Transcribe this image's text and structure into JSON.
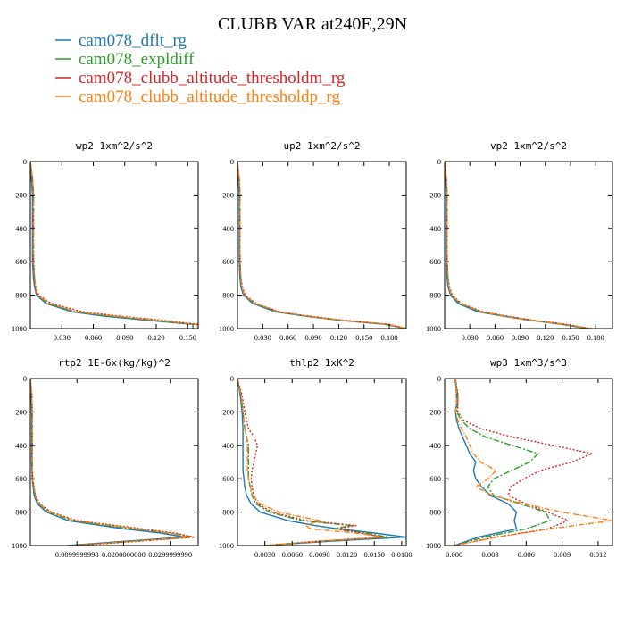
{
  "title": "CLUBB VAR at240E,29N",
  "legend": [
    {
      "name": "cam078_dflt_rg",
      "color": "#1f77b4",
      "dash": ""
    },
    {
      "name": "cam078_expldiff",
      "color": "#2ca02c",
      "dash": "7,2,2,2"
    },
    {
      "name": "cam078_clubb_altitude_thresholdm_rg",
      "color": "#d62728",
      "dash": "2,2"
    },
    {
      "name": "cam078_clubb_altitude_thresholdp_rg",
      "color": "#ff7f0e",
      "dash": "6,2,1,2"
    }
  ],
  "chart_data": [
    {
      "type": "line",
      "title": "wp2  1xm^2/s^2",
      "ylim": [
        1000,
        0
      ],
      "yticks": [
        "0",
        "200",
        "400",
        "600",
        "800",
        "1000"
      ],
      "xlim": [
        0,
        0.16
      ],
      "xticks": [
        {
          "v": 0.03,
          "label": "0.030"
        },
        {
          "v": 0.06,
          "label": "0.060"
        },
        {
          "v": 0.09,
          "label": "0.090"
        },
        {
          "v": 0.12,
          "label": "0.120"
        },
        {
          "v": 0.15,
          "label": "0.150"
        }
      ],
      "y": [
        0,
        100,
        200,
        300,
        400,
        500,
        600,
        700,
        750,
        800,
        850,
        900,
        925,
        950,
        975,
        1000
      ],
      "series": [
        {
          "values": [
            0.0,
            0.001,
            0.002,
            0.002,
            0.002,
            0.002,
            0.002,
            0.003,
            0.004,
            0.006,
            0.015,
            0.04,
            0.07,
            0.11,
            0.155,
            0.155
          ]
        },
        {
          "values": [
            0.0,
            0.002,
            0.003,
            0.003,
            0.003,
            0.003,
            0.003,
            0.004,
            0.005,
            0.007,
            0.017,
            0.043,
            0.075,
            0.115,
            0.158,
            0.158
          ]
        },
        {
          "values": [
            0.0,
            0.002,
            0.003,
            0.003,
            0.003,
            0.003,
            0.003,
            0.004,
            0.005,
            0.008,
            0.02,
            0.05,
            0.085,
            0.125,
            0.16,
            0.16
          ]
        },
        {
          "values": [
            0.0,
            0.002,
            0.003,
            0.003,
            0.003,
            0.003,
            0.003,
            0.004,
            0.005,
            0.007,
            0.018,
            0.045,
            0.08,
            0.12,
            0.158,
            0.158
          ]
        }
      ]
    },
    {
      "type": "line",
      "title": "up2  1xm^2/s^2",
      "ylim": [
        1000,
        0
      ],
      "yticks": [
        "0",
        "200",
        "400",
        "600",
        "800",
        "1000"
      ],
      "xlim": [
        0,
        0.2
      ],
      "xticks": [
        {
          "v": 0.03,
          "label": "0.030"
        },
        {
          "v": 0.06,
          "label": "0.060"
        },
        {
          "v": 0.09,
          "label": "0.090"
        },
        {
          "v": 0.12,
          "label": "0.120"
        },
        {
          "v": 0.15,
          "label": "0.150"
        },
        {
          "v": 0.18,
          "label": "0.180"
        }
      ],
      "y": [
        0,
        100,
        200,
        300,
        400,
        500,
        600,
        700,
        750,
        800,
        850,
        900,
        925,
        950,
        975,
        1000
      ],
      "series": [
        {
          "values": [
            0.0,
            0.001,
            0.002,
            0.002,
            0.002,
            0.002,
            0.002,
            0.003,
            0.004,
            0.007,
            0.018,
            0.045,
            0.08,
            0.12,
            0.175,
            0.2
          ]
        },
        {
          "values": [
            0.0,
            0.002,
            0.003,
            0.003,
            0.003,
            0.003,
            0.003,
            0.004,
            0.005,
            0.008,
            0.02,
            0.048,
            0.082,
            0.122,
            0.178,
            0.2
          ]
        },
        {
          "values": [
            0.0,
            0.002,
            0.003,
            0.003,
            0.003,
            0.003,
            0.003,
            0.004,
            0.006,
            0.009,
            0.022,
            0.05,
            0.085,
            0.125,
            0.18,
            0.2
          ]
        },
        {
          "values": [
            0.0,
            0.002,
            0.003,
            0.003,
            0.003,
            0.003,
            0.003,
            0.004,
            0.005,
            0.008,
            0.021,
            0.049,
            0.083,
            0.123,
            0.178,
            0.2
          ]
        }
      ]
    },
    {
      "type": "line",
      "title": "vp2  1xm^2/s^2",
      "ylim": [
        1000,
        0
      ],
      "yticks": [
        "0",
        "200",
        "400",
        "600",
        "800",
        "1000"
      ],
      "xlim": [
        0,
        0.2
      ],
      "xticks": [
        {
          "v": 0.03,
          "label": "0.030"
        },
        {
          "v": 0.06,
          "label": "0.060"
        },
        {
          "v": 0.09,
          "label": "0.090"
        },
        {
          "v": 0.12,
          "label": "0.120"
        },
        {
          "v": 0.15,
          "label": "0.150"
        },
        {
          "v": 0.18,
          "label": "0.180"
        }
      ],
      "y": [
        0,
        100,
        200,
        300,
        400,
        500,
        600,
        700,
        750,
        800,
        850,
        900,
        925,
        950,
        975,
        1000
      ],
      "series": [
        {
          "values": [
            0.0,
            0.001,
            0.002,
            0.002,
            0.002,
            0.002,
            0.002,
            0.003,
            0.004,
            0.007,
            0.016,
            0.04,
            0.07,
            0.1,
            0.14,
            0.17
          ]
        },
        {
          "values": [
            0.0,
            0.002,
            0.003,
            0.003,
            0.003,
            0.003,
            0.003,
            0.004,
            0.005,
            0.008,
            0.018,
            0.043,
            0.072,
            0.102,
            0.142,
            0.172
          ]
        },
        {
          "values": [
            0.0,
            0.002,
            0.003,
            0.003,
            0.003,
            0.003,
            0.003,
            0.004,
            0.006,
            0.009,
            0.02,
            0.046,
            0.075,
            0.105,
            0.145,
            0.175
          ]
        },
        {
          "values": [
            0.0,
            0.002,
            0.003,
            0.003,
            0.003,
            0.003,
            0.003,
            0.004,
            0.005,
            0.008,
            0.019,
            0.044,
            0.073,
            0.103,
            0.143,
            0.173
          ]
        }
      ]
    },
    {
      "type": "line",
      "title": "rtp2  1E-6x(kg/kg)^2",
      "ylim": [
        1000,
        0
      ],
      "yticks": [
        "0",
        "200",
        "400",
        "600",
        "800",
        "1000"
      ],
      "xlim": [
        0,
        0.036
      ],
      "xticks": [
        {
          "v": 0.01,
          "label": "0.0099999998"
        },
        {
          "v": 0.02,
          "label": "0.0200000000"
        },
        {
          "v": 0.03,
          "label": "0.0299999990"
        }
      ],
      "y": [
        0,
        100,
        200,
        300,
        400,
        500,
        600,
        700,
        750,
        800,
        850,
        900,
        925,
        950,
        975,
        1000
      ],
      "series": [
        {
          "values": [
            0.0,
            0.0002,
            0.0003,
            0.0003,
            0.0003,
            0.0003,
            0.0004,
            0.0008,
            0.0015,
            0.0035,
            0.008,
            0.02,
            0.028,
            0.033,
            0.02,
            0.008
          ]
        },
        {
          "values": [
            0.0,
            0.0003,
            0.0004,
            0.0004,
            0.0004,
            0.0004,
            0.0005,
            0.001,
            0.0018,
            0.004,
            0.009,
            0.022,
            0.03,
            0.035,
            0.022,
            0.009
          ]
        },
        {
          "values": [
            0.0,
            0.0003,
            0.0004,
            0.0004,
            0.0004,
            0.0004,
            0.0005,
            0.0011,
            0.002,
            0.0045,
            0.01,
            0.024,
            0.031,
            0.035,
            0.023,
            0.01
          ]
        },
        {
          "values": [
            0.0,
            0.0003,
            0.0004,
            0.0004,
            0.0004,
            0.0004,
            0.0005,
            0.001,
            0.0019,
            0.0042,
            0.0095,
            0.023,
            0.03,
            0.034,
            0.022,
            0.009
          ]
        }
      ]
    },
    {
      "type": "line",
      "title": "thlp2  1xK^2",
      "ylim": [
        1000,
        0
      ],
      "yticks": [
        "0",
        "200",
        "400",
        "600",
        "800",
        "1000"
      ],
      "xlim": [
        0,
        0.0185
      ],
      "xticks": [
        {
          "v": 0.003,
          "label": "0.0030"
        },
        {
          "v": 0.006,
          "label": "0.0060"
        },
        {
          "v": 0.009,
          "label": "0.0090"
        },
        {
          "v": 0.012,
          "label": "0.0120"
        },
        {
          "v": 0.015,
          "label": "0.0150"
        },
        {
          "v": 0.018,
          "label": "0.0180"
        }
      ],
      "y": [
        0,
        100,
        200,
        300,
        350,
        400,
        450,
        500,
        550,
        600,
        650,
        700,
        750,
        800,
        850,
        880,
        900,
        925,
        950,
        975,
        1000
      ],
      "series": [
        {
          "values": [
            0.0,
            0.0003,
            0.0005,
            0.0006,
            0.0006,
            0.0006,
            0.0006,
            0.0006,
            0.0006,
            0.0007,
            0.0008,
            0.001,
            0.0015,
            0.0025,
            0.0055,
            0.0085,
            0.011,
            0.015,
            0.0185,
            0.01,
            0.003
          ]
        },
        {
          "values": [
            0.0,
            0.0004,
            0.0006,
            0.0008,
            0.001,
            0.0012,
            0.0012,
            0.0012,
            0.0012,
            0.0012,
            0.0014,
            0.0016,
            0.002,
            0.0035,
            0.007,
            0.0125,
            0.0105,
            0.014,
            0.0165,
            0.009,
            0.003
          ]
        },
        {
          "values": [
            0.0,
            0.0005,
            0.0008,
            0.0012,
            0.0018,
            0.0022,
            0.002,
            0.0018,
            0.0016,
            0.0015,
            0.0016,
            0.0018,
            0.0022,
            0.0038,
            0.0075,
            0.013,
            0.011,
            0.0135,
            0.016,
            0.0085,
            0.003
          ]
        },
        {
          "values": [
            0.0,
            0.0004,
            0.0006,
            0.0008,
            0.001,
            0.0011,
            0.0011,
            0.0011,
            0.0011,
            0.0012,
            0.0014,
            0.0017,
            0.0025,
            0.0045,
            0.009,
            0.0075,
            0.008,
            0.013,
            0.016,
            0.009,
            0.003
          ]
        }
      ]
    },
    {
      "type": "line",
      "title": "wp3  1xm^3/s^3",
      "ylim": [
        1000,
        0
      ],
      "yticks": [
        "0",
        "200",
        "400",
        "600",
        "800",
        "1000"
      ],
      "xlim": [
        -0.0008,
        0.0132
      ],
      "xticks": [
        {
          "v": 0.0,
          "label": "0.000"
        },
        {
          "v": 0.003,
          "label": "0.003"
        },
        {
          "v": 0.006,
          "label": "0.006"
        },
        {
          "v": 0.009,
          "label": "0.009"
        },
        {
          "v": 0.012,
          "label": "0.012"
        }
      ],
      "y": [
        0,
        100,
        150,
        200,
        250,
        300,
        350,
        400,
        450,
        500,
        550,
        600,
        650,
        700,
        750,
        800,
        850,
        900,
        950,
        1000
      ],
      "series": [
        {
          "values": [
            0.0001,
            0.0002,
            0.0002,
            0.0001,
            0.0002,
            0.0004,
            0.0007,
            0.001,
            0.0013,
            0.0018,
            0.0016,
            0.0018,
            0.0023,
            0.003,
            0.0045,
            0.0052,
            0.005,
            0.0052,
            0.002,
            0.0
          ]
        },
        {
          "values": [
            0.0001,
            0.0003,
            0.0003,
            0.0002,
            0.0006,
            0.0013,
            0.0026,
            0.0048,
            0.007,
            0.0063,
            0.0048,
            0.0033,
            0.0028,
            0.0033,
            0.0055,
            0.0076,
            0.008,
            0.006,
            0.0025,
            0.0
          ]
        },
        {
          "values": [
            0.0001,
            0.0003,
            0.0003,
            0.0003,
            0.0008,
            0.0022,
            0.0048,
            0.0082,
            0.0115,
            0.0098,
            0.0072,
            0.0058,
            0.0047,
            0.0045,
            0.006,
            0.0078,
            0.0095,
            0.0078,
            0.0035,
            0.0
          ]
        },
        {
          "values": [
            0.0001,
            0.0002,
            0.0002,
            0.0001,
            0.0003,
            0.0006,
            0.001,
            0.0013,
            0.0016,
            0.0022,
            0.0035,
            0.0028,
            0.0018,
            0.0032,
            0.0058,
            0.009,
            0.0132,
            0.008,
            0.0035,
            0.0
          ]
        }
      ]
    }
  ]
}
